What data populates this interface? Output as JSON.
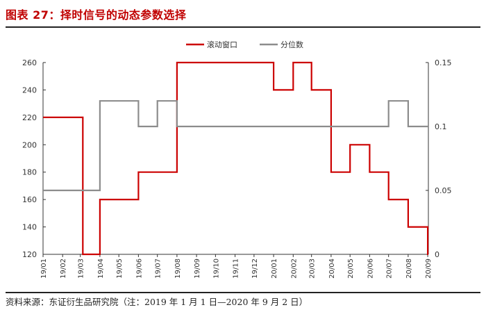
{
  "figure": {
    "title": "图表 27：择时信号的动态参数选择",
    "source": "资料来源：东证衍生品研究院（注：2019 年 1 月 1 日—2020 年 9 月 2 日）"
  },
  "colors": {
    "window": "#cc0000",
    "quantile": "#8c8c8c",
    "axis": "#333333",
    "text": "#333333"
  },
  "chart_data": {
    "type": "line",
    "title": "",
    "x": [
      "19/01",
      "19/02",
      "19/03",
      "19/04",
      "19/05",
      "19/06",
      "19/07",
      "19/08",
      "19/09",
      "19/10",
      "19/11",
      "19/12",
      "20/01",
      "20/02",
      "20/03",
      "20/04",
      "20/05",
      "20/06",
      "20/07",
      "20/08",
      "20/09"
    ],
    "legend_position": "top-center",
    "grid": false,
    "y_left": {
      "lim": [
        120,
        260
      ],
      "ticks": [
        "120",
        "140",
        "160",
        "180",
        "200",
        "220",
        "240",
        "260"
      ]
    },
    "y_right": {
      "lim": [
        0,
        0.15
      ],
      "ticks": [
        "0",
        "0.05",
        "0.1",
        "0.15"
      ]
    },
    "series": [
      {
        "name": "滚动窗口",
        "axis": "left",
        "style": "step",
        "points": [
          [
            "2019-01-01",
            220
          ],
          [
            "2019-03-05",
            220
          ],
          [
            "2019-03-05",
            120
          ],
          [
            "2019-04-01",
            120
          ],
          [
            "2019-04-01",
            160
          ],
          [
            "2019-06-01",
            160
          ],
          [
            "2019-06-01",
            180
          ],
          [
            "2019-08-01",
            180
          ],
          [
            "2019-08-01",
            260
          ],
          [
            "2020-01-01",
            260
          ],
          [
            "2020-01-01",
            240
          ],
          [
            "2020-02-01",
            240
          ],
          [
            "2020-02-01",
            260
          ],
          [
            "2020-03-01",
            260
          ],
          [
            "2020-03-01",
            240
          ],
          [
            "2020-04-01",
            240
          ],
          [
            "2020-04-01",
            180
          ],
          [
            "2020-05-01",
            180
          ],
          [
            "2020-05-01",
            200
          ],
          [
            "2020-06-01",
            200
          ],
          [
            "2020-06-01",
            180
          ],
          [
            "2020-07-01",
            180
          ],
          [
            "2020-07-01",
            160
          ],
          [
            "2020-08-01",
            160
          ],
          [
            "2020-08-01",
            140
          ],
          [
            "2020-09-01",
            140
          ],
          [
            "2020-09-01",
            120
          ],
          [
            "2020-09-02",
            120
          ]
        ]
      },
      {
        "name": "分位数",
        "axis": "right",
        "style": "step",
        "points": [
          [
            "2019-01-01",
            0.05
          ],
          [
            "2019-04-01",
            0.05
          ],
          [
            "2019-04-01",
            0.12
          ],
          [
            "2019-06-01",
            0.12
          ],
          [
            "2019-06-01",
            0.1
          ],
          [
            "2019-07-01",
            0.1
          ],
          [
            "2019-07-01",
            0.12
          ],
          [
            "2019-08-01",
            0.12
          ],
          [
            "2019-08-01",
            0.1
          ],
          [
            "2020-07-01",
            0.1
          ],
          [
            "2020-07-01",
            0.12
          ],
          [
            "2020-08-01",
            0.12
          ],
          [
            "2020-08-01",
            0.1
          ],
          [
            "2020-09-02",
            0.1
          ]
        ]
      }
    ]
  }
}
